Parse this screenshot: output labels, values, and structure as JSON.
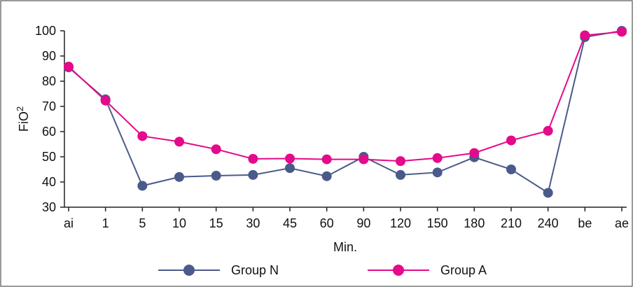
{
  "chart_data": {
    "type": "line",
    "title": "",
    "xlabel": "Min.",
    "ylabel": "FiO",
    "ylabel_superscript": "2",
    "categories": [
      "ai",
      "1",
      "5",
      "10",
      "15",
      "30",
      "45",
      "60",
      "90",
      "120",
      "150",
      "180",
      "210",
      "240",
      "be",
      "ae"
    ],
    "y_ticks": [
      30,
      40,
      50,
      60,
      70,
      80,
      90,
      100
    ],
    "ylim": [
      30,
      100
    ],
    "grid": false,
    "legend_position": "bottom",
    "series": [
      {
        "name": "Group N",
        "color": "#4a5a8a",
        "values": [
          85.5,
          72.8,
          38.5,
          42,
          42.5,
          42.8,
          45.5,
          42.3,
          50,
          42.8,
          43.8,
          49.8,
          45,
          35.7,
          97.5,
          100
        ]
      },
      {
        "name": "Group A",
        "color": "#e5098b",
        "values": [
          85.8,
          72.3,
          58.2,
          56,
          53,
          49.2,
          49.3,
          49,
          49,
          48.3,
          49.5,
          51.5,
          56.5,
          60.3,
          98.2,
          99.6
        ]
      }
    ]
  }
}
